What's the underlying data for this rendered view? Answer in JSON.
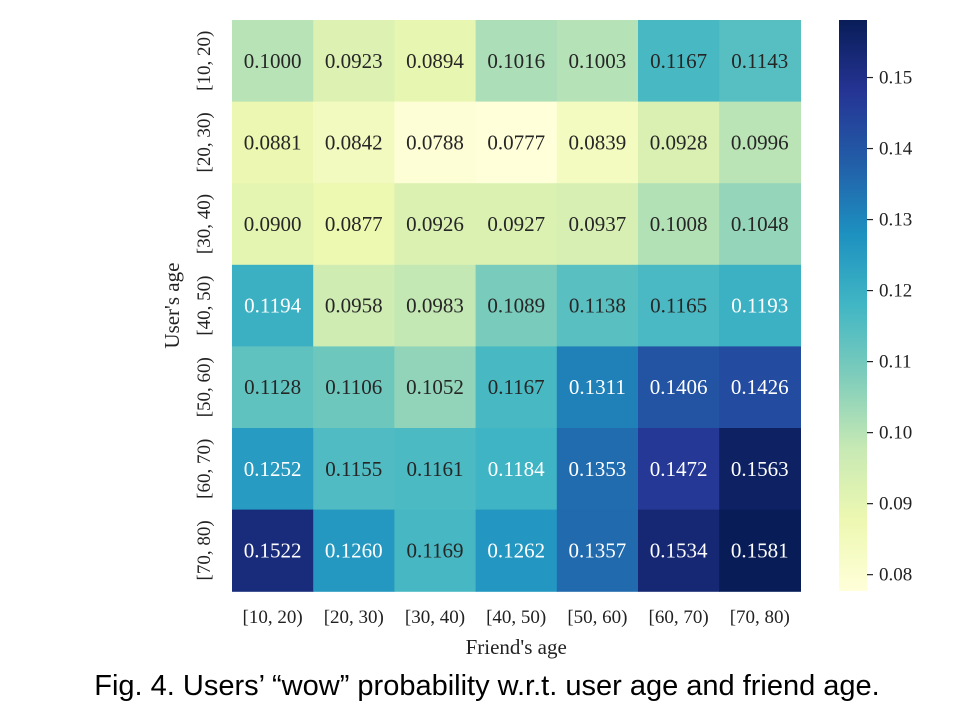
{
  "chart_data": {
    "type": "heatmap",
    "title": "",
    "xlabel": "Friend's age",
    "ylabel": "User's age",
    "x_categories": [
      "[10, 20)",
      "[20, 30)",
      "[30, 40)",
      "[40, 50)",
      "[50, 60)",
      "[60, 70)",
      "[70, 80)"
    ],
    "y_categories": [
      "[10, 20)",
      "[20, 30)",
      "[30, 40)",
      "[40, 50)",
      "[50, 60)",
      "[60, 70)",
      "[70, 80)"
    ],
    "values": [
      [
        0.1,
        0.0923,
        0.0894,
        0.1016,
        0.1003,
        0.1167,
        0.1143
      ],
      [
        0.0881,
        0.0842,
        0.0788,
        0.0777,
        0.0839,
        0.0928,
        0.0996
      ],
      [
        0.09,
        0.0877,
        0.0926,
        0.0927,
        0.0937,
        0.1008,
        0.1048
      ],
      [
        0.1194,
        0.0958,
        0.0983,
        0.1089,
        0.1138,
        0.1165,
        0.1193
      ],
      [
        0.1128,
        0.1106,
        0.1052,
        0.1167,
        0.1311,
        0.1406,
        0.1426
      ],
      [
        0.1252,
        0.1155,
        0.1161,
        0.1184,
        0.1353,
        0.1472,
        0.1563
      ],
      [
        0.1522,
        0.126,
        0.1169,
        0.1262,
        0.1357,
        0.1534,
        0.1581
      ]
    ],
    "value_labels": [
      [
        "0.1000",
        "0.0923",
        "0.0894",
        "0.1016",
        "0.1003",
        "0.1167",
        "0.1143"
      ],
      [
        "0.0881",
        "0.0842",
        "0.0788",
        "0.0777",
        "0.0839",
        "0.0928",
        "0.0996"
      ],
      [
        "0.0900",
        "0.0877",
        "0.0926",
        "0.0927",
        "0.0937",
        "0.1008",
        "0.1048"
      ],
      [
        "0.1194",
        "0.0958",
        "0.0983",
        "0.1089",
        "0.1138",
        "0.1165",
        "0.1193"
      ],
      [
        "0.1128",
        "0.1106",
        "0.1052",
        "0.1167",
        "0.1311",
        "0.1406",
        "0.1426"
      ],
      [
        "0.1252",
        "0.1155",
        "0.1161",
        "0.1184",
        "0.1353",
        "0.1472",
        "0.1563"
      ],
      [
        "0.1522",
        "0.1260",
        "0.1169",
        "0.1262",
        "0.1357",
        "0.1534",
        "0.1581"
      ]
    ],
    "colorbar": {
      "vmin": 0.0777,
      "vmax": 0.1581,
      "ticks": [
        0.08,
        0.09,
        0.1,
        0.11,
        0.12,
        0.13,
        0.14,
        0.15
      ],
      "tick_labels": [
        "0.08",
        "0.09",
        "0.10",
        "0.11",
        "0.12",
        "0.13",
        "0.14",
        "0.15"
      ],
      "colormap": "YlGnBu",
      "colormap_stops": [
        "#ffffd9",
        "#edf8b1",
        "#c7e9b4",
        "#7fcdbb",
        "#41b6c4",
        "#1d91c0",
        "#225ea8",
        "#253494",
        "#081d58"
      ]
    }
  },
  "caption": "Fig. 4. Users’ “wow” probability w.r.t. user age and friend age."
}
